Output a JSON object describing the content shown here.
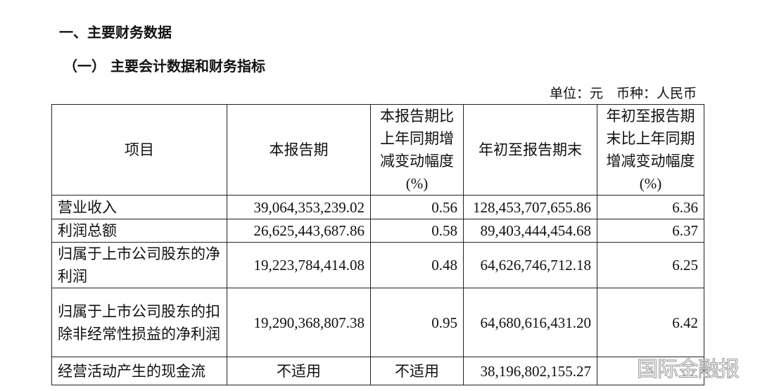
{
  "section_title": "一、主要财务数据",
  "subsection_title": "（一） 主要会计数据和财务指标",
  "unit_line": "单位：元　币种：人民币",
  "table": {
    "headers": [
      "项目",
      "本报告期",
      "本报告期比上年同期增减变动幅度(%)",
      "年初至报告期末",
      "年初至报告期末比上年同期增减变动幅度(%)"
    ],
    "rows": [
      [
        "营业收入",
        "39,064,353,239.02",
        "0.56",
        "128,453,707,655.86",
        "6.36"
      ],
      [
        "利润总额",
        "26,625,443,687.86",
        "0.58",
        "89,403,444,454.68",
        "6.37"
      ],
      [
        "归属于上市公司股东的净利润",
        "19,223,784,414.08",
        "0.48",
        "64,626,746,712.18",
        "6.25"
      ],
      [
        "归属于上市公司股东的扣除非经常性损益的净利润",
        "19,290,368,807.38",
        "0.95",
        "64,680,616,431.20",
        "6.42"
      ],
      [
        "经营活动产生的现金流",
        "不适用",
        "不适用",
        "38,196,802,155.27",
        ""
      ]
    ]
  },
  "watermark": "国际金融报"
}
